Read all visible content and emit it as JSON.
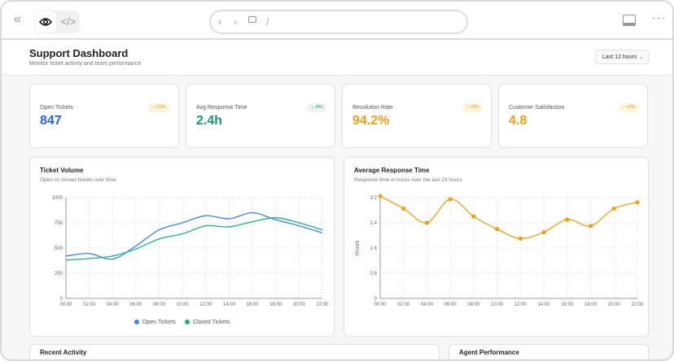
{
  "browser": {
    "url": "/",
    "icons": [
      "collapse-icon",
      "eye-icon",
      "code-icon",
      "back-icon",
      "forward-icon",
      "monitor-icon",
      "panel-icon",
      "more-icon"
    ]
  },
  "header": {
    "title": "Support Dashboard",
    "subtitle": "Monitor ticket activity and team performance",
    "range": "Last 12 hours"
  },
  "colors": {
    "blue": "#3b7ddd",
    "green": "#17a37a",
    "orange": "#f5a00f",
    "badge_up_bg": "#fff4dc",
    "badge_down_bg": "#eef2f0"
  },
  "kpis": [
    {
      "label": "Open Tickets",
      "value": "847",
      "change": "↑ +12%",
      "color": "#2563eb",
      "trend": "up"
    },
    {
      "label": "Avg Response Time",
      "value": "2.4h",
      "change": "↓ -8%",
      "color": "#119a72",
      "trend": "down"
    },
    {
      "label": "Resolution Rate",
      "value": "94.2%",
      "change": "↑ +5%",
      "color": "#f59e0b",
      "trend": "up"
    },
    {
      "label": "Customer Satisfaction",
      "value": "4.8",
      "change": "↑ +2%",
      "color": "#f59e0b",
      "trend": "up"
    }
  ],
  "charts": {
    "volume": {
      "title": "Ticket Volume",
      "subtitle": "Open vs closed tickets over time"
    },
    "response": {
      "title": "Average Response Time",
      "subtitle": "Response time in hours over the last 24 hours"
    }
  },
  "chart_data": [
    {
      "type": "line",
      "title": "Ticket Volume",
      "x": [
        "00:00",
        "02:00",
        "04:00",
        "06:00",
        "08:00",
        "10:00",
        "12:00",
        "14:00",
        "16:00",
        "18:00",
        "20:00",
        "22:00"
      ],
      "ylim": [
        0,
        1000
      ],
      "yticks": [
        0,
        250,
        500,
        750,
        1000
      ],
      "grid": true,
      "legend": "bottom",
      "series": [
        {
          "name": "Open Tickets",
          "color": "#3b82f6",
          "values": [
            420,
            445,
            390,
            520,
            680,
            750,
            820,
            790,
            850,
            780,
            720,
            650
          ]
        },
        {
          "name": "Closed Tickets",
          "color": "#10b981",
          "values": [
            380,
            395,
            420,
            490,
            590,
            640,
            720,
            710,
            760,
            800,
            750,
            680
          ]
        }
      ]
    },
    {
      "type": "line",
      "title": "Average Response Time",
      "ylabel": "Hours",
      "x": [
        "00:00",
        "02:00",
        "04:00",
        "06:00",
        "08:00",
        "10:00",
        "12:00",
        "14:00",
        "16:00",
        "18:00",
        "20:00",
        "22:00"
      ],
      "ylim": [
        0,
        3.2
      ],
      "yticks": [
        "0",
        "0.8",
        "1.6",
        "2.4",
        "3.2"
      ],
      "grid": true,
      "series": [
        {
          "color": "#f59e0b",
          "values": [
            3.25,
            2.85,
            2.4,
            3.15,
            2.6,
            2.2,
            1.9,
            2.1,
            2.5,
            2.3,
            2.85,
            3.05
          ]
        }
      ]
    }
  ],
  "bottom": {
    "activity_title": "Recent Activity",
    "agents_title": "Agent Performance"
  }
}
